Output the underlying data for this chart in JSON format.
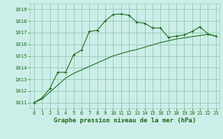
{
  "title": "Graphe pression niveau de la mer (hPa)",
  "bg_color": "#cceee8",
  "grid_color": "#99ccbb",
  "line_color": "#1a6b1a",
  "xlim": [
    -0.5,
    23.5
  ],
  "ylim": [
    1010.5,
    1019.5
  ],
  "yticks": [
    1011,
    1012,
    1013,
    1014,
    1015,
    1016,
    1017,
    1018,
    1019
  ],
  "xticks": [
    0,
    1,
    2,
    3,
    4,
    5,
    6,
    7,
    8,
    9,
    10,
    11,
    12,
    13,
    14,
    15,
    16,
    17,
    18,
    19,
    20,
    21,
    22,
    23
  ],
  "series1_x": [
    0,
    1,
    2,
    3,
    4,
    5,
    6,
    7,
    8,
    9,
    10,
    11,
    12,
    13,
    14,
    15,
    16,
    17,
    18,
    19,
    20,
    21,
    22,
    23
  ],
  "series1_y": [
    1011.0,
    1011.4,
    1012.2,
    1013.6,
    1013.6,
    1015.1,
    1015.5,
    1017.1,
    1017.2,
    1018.0,
    1018.55,
    1018.6,
    1018.5,
    1017.9,
    1017.8,
    1017.4,
    1017.4,
    1016.6,
    1016.7,
    1016.8,
    1017.1,
    1017.5,
    1016.9,
    1016.7
  ],
  "series2_x": [
    0,
    1,
    2,
    3,
    4,
    5,
    6,
    7,
    8,
    9,
    10,
    11,
    12,
    13,
    14,
    15,
    16,
    17,
    18,
    19,
    20,
    21,
    22,
    23
  ],
  "series2_y": [
    1011.0,
    1011.3,
    1011.9,
    1012.5,
    1013.1,
    1013.5,
    1013.8,
    1014.1,
    1014.4,
    1014.7,
    1015.0,
    1015.2,
    1015.4,
    1015.55,
    1015.75,
    1015.95,
    1016.15,
    1016.3,
    1016.45,
    1016.55,
    1016.65,
    1016.75,
    1016.85,
    1016.7
  ],
  "title_fontsize": 6.5,
  "tick_fontsize": 5.2,
  "linewidth": 0.8,
  "markersize": 2.8
}
